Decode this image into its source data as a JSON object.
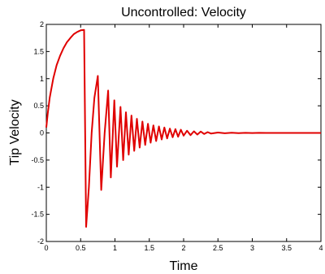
{
  "chart_data": {
    "type": "line",
    "title": "Uncontrolled: Velocity",
    "xlabel": "Time",
    "ylabel": "Tip Velocity",
    "xlim": [
      0,
      4
    ],
    "ylim": [
      -2,
      2
    ],
    "xticks": [
      0,
      0.5,
      1,
      1.5,
      2,
      2.5,
      3,
      3.5,
      4
    ],
    "xtick_labels": [
      "0",
      "0.5",
      "1",
      "1.5",
      "2",
      "2.5",
      "3",
      "3.5",
      "4"
    ],
    "yticks": [
      2,
      1.5,
      1,
      0.5,
      0,
      -0.5,
      -1,
      -1.5,
      -2
    ],
    "ytick_labels": [
      "2",
      "1.5",
      "1",
      "0.5",
      "0",
      "-0.5",
      "-1",
      "-1.5",
      "-2"
    ],
    "grid": false,
    "series": [
      {
        "color": "#e00000",
        "x": [
          0,
          0.02,
          0.05,
          0.1,
          0.15,
          0.2,
          0.25,
          0.3,
          0.35,
          0.4,
          0.45,
          0.5,
          0.55,
          0.58,
          0.62,
          0.66,
          0.7,
          0.75,
          0.8,
          0.85,
          0.9,
          0.94,
          0.99,
          1.03,
          1.08,
          1.12,
          1.16,
          1.2,
          1.24,
          1.28,
          1.32,
          1.36,
          1.4,
          1.44,
          1.48,
          1.52,
          1.56,
          1.6,
          1.64,
          1.68,
          1.72,
          1.76,
          1.8,
          1.84,
          1.88,
          1.92,
          1.96,
          2.0,
          2.05,
          2.1,
          2.15,
          2.2,
          2.25,
          2.3,
          2.35,
          2.4,
          2.5,
          2.6,
          2.7,
          2.8,
          2.9,
          3.0,
          3.1,
          3.2,
          3.3,
          3.4,
          3.5,
          3.6,
          3.7,
          3.8,
          3.9,
          4.0
        ],
        "y": [
          0.1,
          0.35,
          0.65,
          1.0,
          1.25,
          1.42,
          1.56,
          1.67,
          1.75,
          1.82,
          1.86,
          1.89,
          1.9,
          -1.73,
          -1.0,
          0.0,
          0.65,
          1.05,
          -1.05,
          0.0,
          0.78,
          -0.82,
          0.6,
          -0.62,
          0.48,
          -0.5,
          0.38,
          -0.4,
          0.32,
          -0.33,
          0.26,
          -0.27,
          0.21,
          -0.22,
          0.17,
          -0.18,
          0.14,
          -0.15,
          0.12,
          -0.12,
          0.1,
          -0.1,
          0.08,
          -0.08,
          0.07,
          -0.07,
          0.06,
          -0.05,
          0.04,
          -0.04,
          0.03,
          -0.03,
          0.025,
          -0.02,
          0.015,
          -0.012,
          0.008,
          -0.006,
          0.004,
          -0.003,
          0.002,
          -0.001,
          0.001,
          0,
          0,
          0,
          0,
          0,
          0,
          0,
          0,
          0
        ]
      }
    ]
  }
}
